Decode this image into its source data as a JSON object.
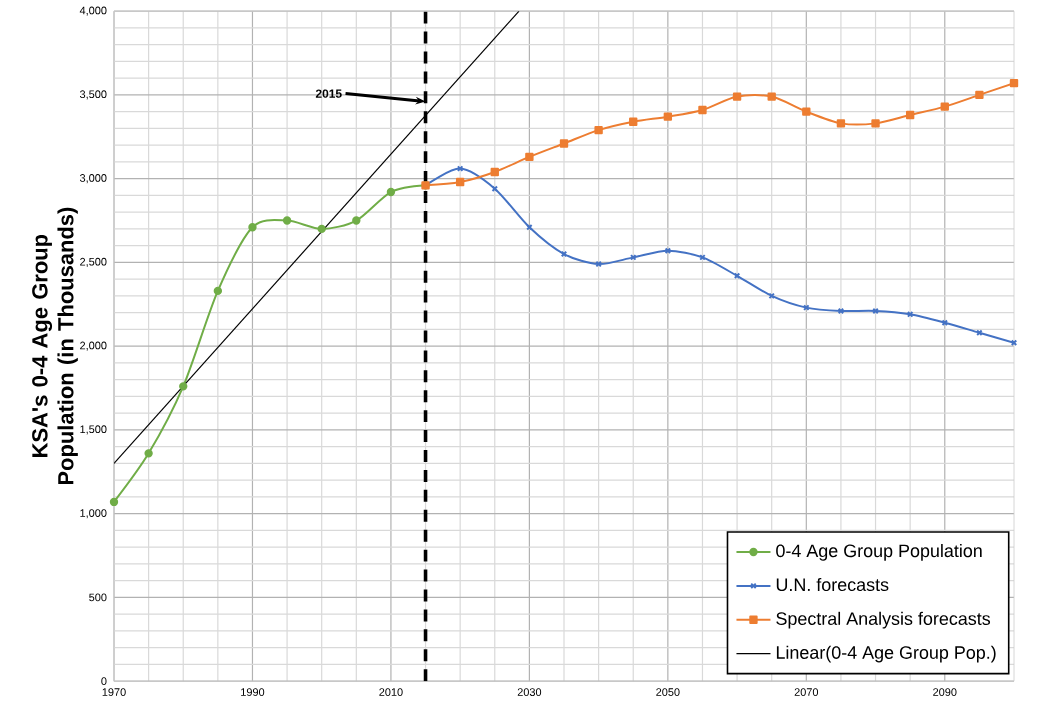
{
  "chart_data": {
    "type": "line",
    "ylabel": "KSA's 0-4 Age Group Population (in Thousands)",
    "xlim": [
      1970,
      2100
    ],
    "ylim": [
      0,
      4000
    ],
    "xticks": [
      1970,
      1990,
      2010,
      2030,
      2050,
      2070,
      2090
    ],
    "yticks": [
      {
        "value": 0,
        "label": "0"
      },
      {
        "value": 500,
        "label": "500"
      },
      {
        "value": 1000,
        "label": "1,000"
      },
      {
        "value": 1500,
        "label": "1,500"
      },
      {
        "value": 2000,
        "label": "2,000"
      },
      {
        "value": 2500,
        "label": "2,500"
      },
      {
        "value": 3000,
        "label": "3,000"
      },
      {
        "value": 3500,
        "label": "3,500"
      },
      {
        "value": 4000,
        "label": "4,000"
      }
    ],
    "grid": true,
    "legend": "bottom right",
    "series": [
      {
        "name": "0-4 Age Group Population",
        "color": "#70ad47",
        "marker": "circle",
        "x": [
          1970,
          1975,
          1980,
          1985,
          1990,
          1995,
          2000,
          2005,
          2010,
          2015
        ],
        "values": [
          1070,
          1360,
          1760,
          2330,
          2710,
          2750,
          2700,
          2750,
          2920,
          2960
        ]
      },
      {
        "name": "U.N. forecasts",
        "color": "#4472c4",
        "marker": "cross",
        "x": [
          2015,
          2020,
          2025,
          2030,
          2035,
          2040,
          2045,
          2050,
          2055,
          2060,
          2065,
          2070,
          2075,
          2080,
          2085,
          2090,
          2095,
          2100
        ],
        "values": [
          2960,
          3060,
          2940,
          2710,
          2550,
          2490,
          2530,
          2570,
          2530,
          2420,
          2300,
          2230,
          2210,
          2210,
          2190,
          2140,
          2080,
          2020
        ]
      },
      {
        "name": "Spectral Analysis forecasts",
        "color": "#ed7d31",
        "marker": "square",
        "x": [
          2015,
          2020,
          2025,
          2030,
          2035,
          2040,
          2045,
          2050,
          2055,
          2060,
          2065,
          2070,
          2075,
          2080,
          2085,
          2090,
          2095,
          2100
        ],
        "values": [
          2960,
          2980,
          3040,
          3130,
          3210,
          3290,
          3340,
          3370,
          3410,
          3490,
          3490,
          3400,
          3330,
          3330,
          3380,
          3430,
          3500,
          3570
        ]
      },
      {
        "name": "Linear(0-4 Age Group Pop.)",
        "color": "#000000",
        "marker": "none",
        "x": [
          1970,
          2028.5
        ],
        "values": [
          1300,
          4000
        ]
      }
    ],
    "ref_lines": [
      {
        "axis": "x",
        "value": 2015,
        "color": "#000000",
        "line_style": "dashed"
      }
    ],
    "annotations": [
      {
        "text": "2015",
        "x": 2015,
        "y": 3460
      }
    ]
  }
}
